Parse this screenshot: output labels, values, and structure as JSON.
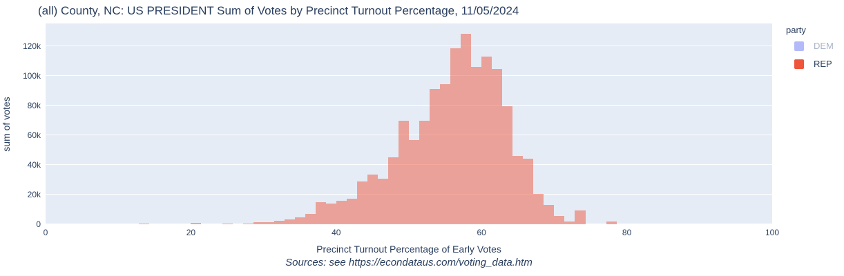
{
  "title": "(all) County, NC: US PRESIDENT Sum of Votes by Precinct Turnout Percentage, 11/05/2024",
  "source_note": "Sources: see https://econdataus.com/voting_data.htm",
  "legend": {
    "title": "party",
    "items": [
      {
        "label": "DEM",
        "swatch_color": "#b4baf9",
        "muted": true
      },
      {
        "label": "REP",
        "swatch_color": "#ef553b",
        "muted": false
      }
    ]
  },
  "colors": {
    "page_bg": "#ffffff",
    "plot_bg": "#e5ecf6",
    "grid": "#ffffff",
    "bar_fill": "rgba(239,85,59,0.5)",
    "text": "#2a3f5f",
    "muted_text": "#a9b3c7"
  },
  "x_axis": {
    "title": "Precinct Turnout Percentage of Early Votes",
    "ticks": [
      0,
      20,
      40,
      60,
      80,
      100
    ]
  },
  "y_axis": {
    "title": "sum of votes",
    "ticks": [
      {
        "label": "0",
        "value": 0
      },
      {
        "label": "20k",
        "value": 20000
      },
      {
        "label": "40k",
        "value": 40000
      },
      {
        "label": "60k",
        "value": 60000
      },
      {
        "label": "80k",
        "value": 80000
      },
      {
        "label": "100k",
        "value": 100000
      },
      {
        "label": "120k",
        "value": 120000
      }
    ]
  },
  "chart_data": {
    "type": "bar",
    "subtype": "histogram",
    "title": "(all) County, NC: US PRESIDENT Sum of Votes by Precinct Turnout Percentage, 11/05/2024",
    "xlabel": "Precinct Turnout Percentage of Early Votes",
    "ylabel": "sum of votes",
    "xlim": [
      0,
      100
    ],
    "ylim": [
      0,
      135600
    ],
    "grid": "horizontal-white",
    "legend_position": "right",
    "bin_width": 1.4286,
    "series": [
      {
        "name": "REP",
        "visible": true,
        "bins": [
          {
            "x": 12.86,
            "y": 600
          },
          {
            "x": 20.0,
            "y": 1100
          },
          {
            "x": 24.29,
            "y": 400
          },
          {
            "x": 27.14,
            "y": 450
          },
          {
            "x": 28.57,
            "y": 1300
          },
          {
            "x": 30.0,
            "y": 1400
          },
          {
            "x": 31.43,
            "y": 2300
          },
          {
            "x": 32.86,
            "y": 3300
          },
          {
            "x": 34.29,
            "y": 4500
          },
          {
            "x": 35.71,
            "y": 7000
          },
          {
            "x": 37.14,
            "y": 14900
          },
          {
            "x": 38.57,
            "y": 14100
          },
          {
            "x": 40.0,
            "y": 15800
          },
          {
            "x": 41.43,
            "y": 17400
          },
          {
            "x": 42.86,
            "y": 28900
          },
          {
            "x": 44.29,
            "y": 33600
          },
          {
            "x": 45.71,
            "y": 30700
          },
          {
            "x": 47.14,
            "y": 45100
          },
          {
            "x": 48.57,
            "y": 70100
          },
          {
            "x": 50.0,
            "y": 57000
          },
          {
            "x": 51.43,
            "y": 69900
          },
          {
            "x": 52.86,
            "y": 91300
          },
          {
            "x": 54.29,
            "y": 94500
          },
          {
            "x": 55.71,
            "y": 118900
          },
          {
            "x": 57.14,
            "y": 128500
          },
          {
            "x": 58.57,
            "y": 106400
          },
          {
            "x": 60.0,
            "y": 113400
          },
          {
            "x": 61.43,
            "y": 104900
          },
          {
            "x": 62.86,
            "y": 79800
          },
          {
            "x": 64.29,
            "y": 46100
          },
          {
            "x": 65.71,
            "y": 44100
          },
          {
            "x": 67.14,
            "y": 20600
          },
          {
            "x": 68.57,
            "y": 13100
          },
          {
            "x": 70.0,
            "y": 5700
          },
          {
            "x": 71.43,
            "y": 2100
          },
          {
            "x": 72.86,
            "y": 9200
          },
          {
            "x": 77.14,
            "y": 2000
          }
        ]
      },
      {
        "name": "DEM",
        "visible": false,
        "bins": []
      }
    ]
  }
}
